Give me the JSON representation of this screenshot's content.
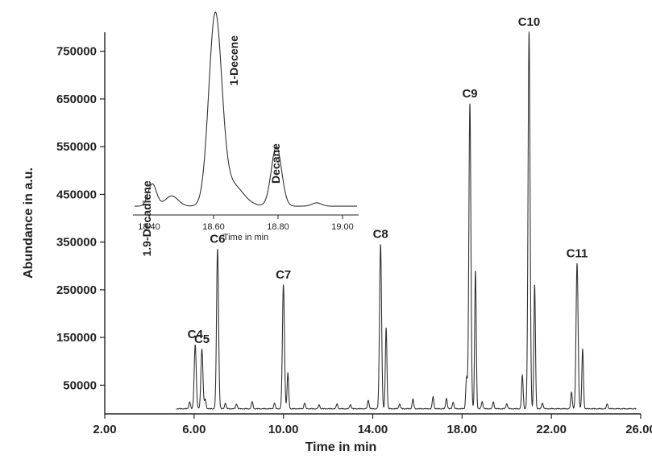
{
  "chart_data": [
    {
      "type": "line",
      "title": "",
      "xlabel": "Time in min",
      "ylabel": "Abundance in a.u.",
      "xlim": [
        2.0,
        26.0
      ],
      "ylim": [
        0,
        790000
      ],
      "x_ticks": [
        "2.00",
        "6.00",
        "10.00",
        "14.00",
        "18.00",
        "22.00",
        "26.00"
      ],
      "x_tick_values": [
        2,
        6,
        10,
        14,
        18,
        22,
        26
      ],
      "y_ticks": [
        "50000",
        "150000",
        "250000",
        "350000",
        "450000",
        "550000",
        "650000",
        "750000"
      ],
      "y_tick_values": [
        50000,
        150000,
        250000,
        350000,
        450000,
        550000,
        650000,
        750000
      ],
      "peaks": [
        {
          "label": "C4",
          "x": 6.05,
          "y": 135000
        },
        {
          "label": "C5",
          "x": 6.35,
          "y": 125000
        },
        {
          "label": "C6",
          "x": 7.05,
          "y": 335000
        },
        {
          "label": "C7",
          "x": 10.0,
          "y": 260000
        },
        {
          "label": "C8",
          "x": 14.35,
          "y": 345000
        },
        {
          "label": "C9",
          "x": 18.35,
          "y": 640000
        },
        {
          "label": "C10",
          "x": 21.0,
          "y": 790000
        },
        {
          "label": "C11",
          "x": 23.15,
          "y": 305000
        }
      ],
      "minor_peaks": [
        {
          "x": 5.8,
          "y": 15000
        },
        {
          "x": 6.5,
          "y": 20000
        },
        {
          "x": 7.4,
          "y": 12000
        },
        {
          "x": 7.9,
          "y": 10000
        },
        {
          "x": 8.6,
          "y": 15000
        },
        {
          "x": 9.6,
          "y": 12000
        },
        {
          "x": 10.2,
          "y": 75000
        },
        {
          "x": 10.95,
          "y": 12000
        },
        {
          "x": 11.6,
          "y": 8000
        },
        {
          "x": 12.4,
          "y": 10000
        },
        {
          "x": 13.0,
          "y": 9000
        },
        {
          "x": 13.8,
          "y": 18000
        },
        {
          "x": 14.6,
          "y": 170000
        },
        {
          "x": 15.2,
          "y": 10000
        },
        {
          "x": 15.8,
          "y": 20000
        },
        {
          "x": 16.7,
          "y": 25000
        },
        {
          "x": 17.3,
          "y": 22000
        },
        {
          "x": 17.6,
          "y": 14000
        },
        {
          "x": 18.2,
          "y": 65000
        },
        {
          "x": 18.6,
          "y": 290000
        },
        {
          "x": 18.9,
          "y": 15000
        },
        {
          "x": 19.4,
          "y": 14000
        },
        {
          "x": 20.0,
          "y": 11000
        },
        {
          "x": 20.7,
          "y": 70000
        },
        {
          "x": 21.25,
          "y": 260000
        },
        {
          "x": 21.6,
          "y": 12000
        },
        {
          "x": 22.9,
          "y": 35000
        },
        {
          "x": 23.4,
          "y": 125000
        },
        {
          "x": 24.5,
          "y": 10000
        }
      ]
    },
    {
      "type": "line",
      "title": "",
      "xlabel": "Time in min",
      "ylabel": "",
      "xlim": [
        18.35,
        19.05
      ],
      "x_ticks": [
        "18.40",
        "18.60",
        "18.80",
        "19.00"
      ],
      "x_tick_values": [
        18.4,
        18.6,
        18.8,
        19.0
      ],
      "peaks": [
        {
          "label": "1.9-Decadiene",
          "x": 18.41,
          "height": 0.12
        },
        {
          "label": "1-Decene",
          "x": 18.605,
          "height": 1.0
        },
        {
          "label": "Decane",
          "x": 18.795,
          "height": 0.32
        }
      ]
    }
  ]
}
